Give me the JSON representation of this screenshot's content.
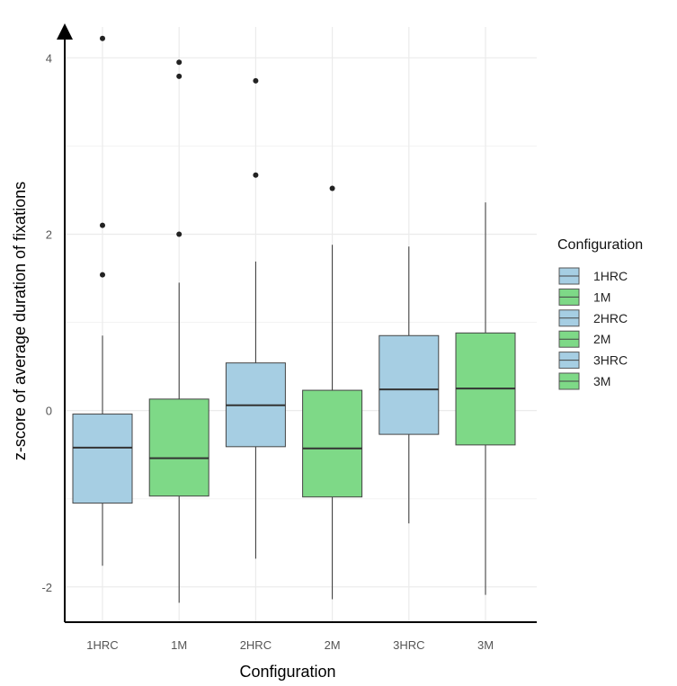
{
  "chart_data": {
    "type": "boxplot",
    "xlabel": "Configuration",
    "ylabel": "z-score of average duration of fixations",
    "ylim": [
      -2.4,
      4.35
    ],
    "yticks": [
      -2,
      0,
      2,
      4
    ],
    "minor_yticks": [
      -1,
      1,
      3
    ],
    "grid": true,
    "categories": [
      "1HRC",
      "1M",
      "2HRC",
      "2M",
      "3HRC",
      "3M"
    ],
    "boxes": [
      {
        "category": "1HRC",
        "q1": -1.05,
        "median": -0.42,
        "q3": -0.04,
        "whisker_low": -1.76,
        "whisker_high": 0.85,
        "outliers": [
          4.22,
          2.1,
          1.54
        ],
        "group": "1HRC"
      },
      {
        "category": "1M",
        "q1": -0.97,
        "median": -0.54,
        "q3": 0.13,
        "whisker_low": -2.18,
        "whisker_high": 1.45,
        "outliers": [
          3.95,
          3.79,
          2.0
        ],
        "group": "1M"
      },
      {
        "category": "2HRC",
        "q1": -0.41,
        "median": 0.06,
        "q3": 0.54,
        "whisker_low": -1.68,
        "whisker_high": 1.69,
        "outliers": [
          3.74,
          2.67
        ],
        "group": "2HRC"
      },
      {
        "category": "2M",
        "q1": -0.98,
        "median": -0.43,
        "q3": 0.23,
        "whisker_low": -2.14,
        "whisker_high": 1.88,
        "outliers": [
          2.52
        ],
        "group": "2M"
      },
      {
        "category": "3HRC",
        "q1": -0.27,
        "median": 0.24,
        "q3": 0.85,
        "whisker_low": -1.28,
        "whisker_high": 1.86,
        "outliers": [],
        "group": "3HRC"
      },
      {
        "category": "3M",
        "q1": -0.39,
        "median": 0.25,
        "q3": 0.88,
        "whisker_low": -2.09,
        "whisker_high": 2.36,
        "outliers": [],
        "group": "3M"
      }
    ],
    "legend": {
      "title": "Configuration",
      "placement": "right",
      "entries": [
        {
          "label": "1HRC",
          "color": "#a6cee3"
        },
        {
          "label": "1M",
          "color": "#7ed987"
        },
        {
          "label": "2HRC",
          "color": "#a6cee3"
        },
        {
          "label": "2M",
          "color": "#7ed987"
        },
        {
          "label": "3HRC",
          "color": "#a6cee3"
        },
        {
          "label": "3M",
          "color": "#7ed987"
        }
      ]
    },
    "colors": {
      "HRC": "#a6cee3",
      "M": "#7ed987",
      "box_border": "#444444",
      "grid": "#ebebeb",
      "axis": "#000000"
    }
  }
}
